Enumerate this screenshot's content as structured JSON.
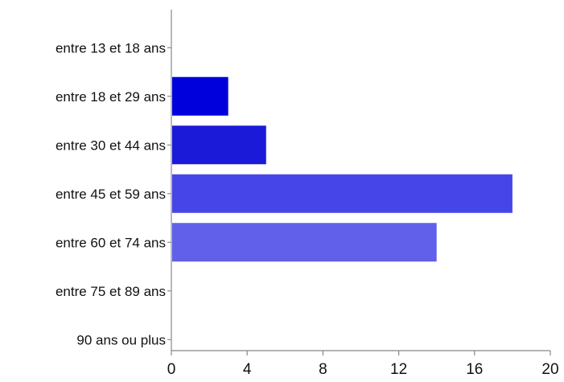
{
  "chart_data": {
    "type": "bar",
    "orientation": "horizontal",
    "categories": [
      "entre 13 et 18 ans",
      "entre 18 et 29 ans",
      "entre 30 et 44 ans",
      "entre 45 et 59 ans",
      "entre 60 et 74 ans",
      "entre 75 et 89 ans",
      "90 ans ou plus"
    ],
    "values": [
      0,
      3,
      5,
      18,
      14,
      0,
      0
    ],
    "bar_colors": [
      "#0000dd",
      "#0000dd",
      "#1a1ad8",
      "#4646e8",
      "#6060ea",
      "#7a7aee",
      "#9090f0"
    ],
    "xlim": [
      0,
      20
    ],
    "xticks": [
      "0",
      "4",
      "8",
      "12",
      "16",
      "20"
    ],
    "grid": false,
    "legend": "none"
  }
}
